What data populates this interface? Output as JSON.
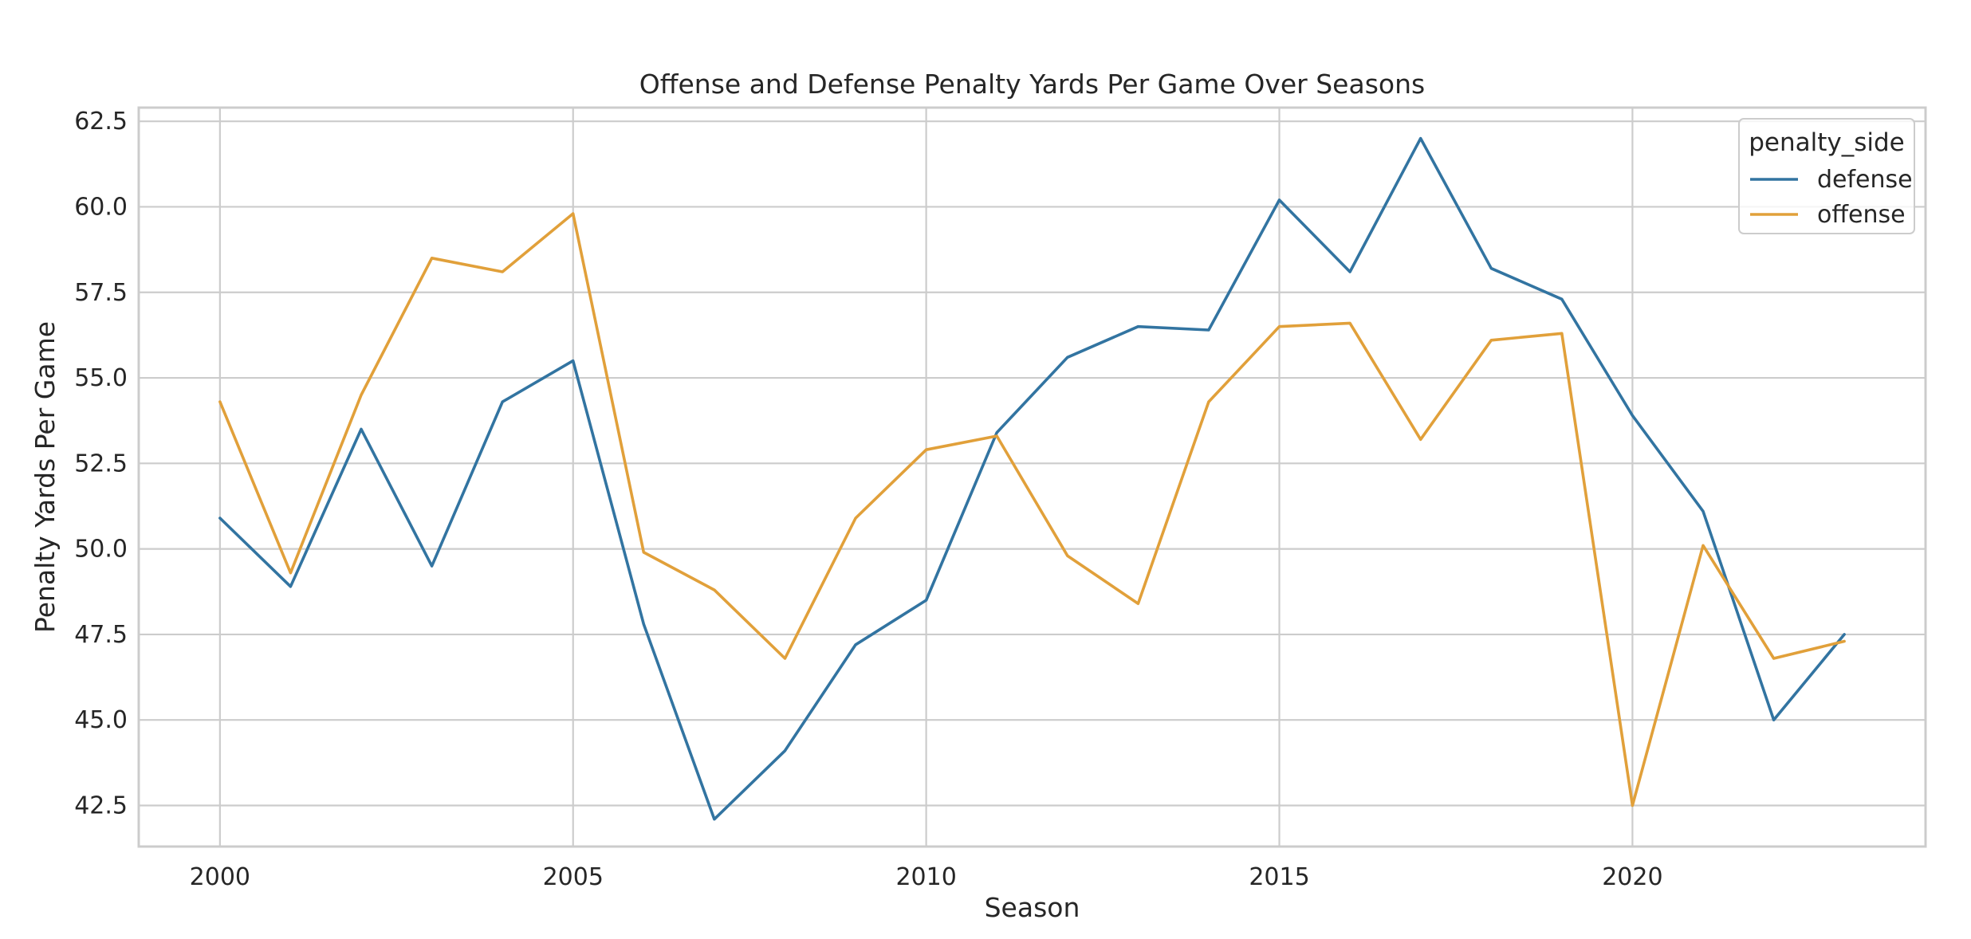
{
  "chart_data": {
    "type": "line",
    "title": "Offense and Defense Penalty Yards Per Game Over Seasons",
    "xlabel": "Season",
    "ylabel": "Penalty Yards Per Game",
    "x": [
      2000,
      2001,
      2002,
      2003,
      2004,
      2005,
      2006,
      2007,
      2008,
      2009,
      2010,
      2011,
      2012,
      2013,
      2014,
      2015,
      2016,
      2017,
      2018,
      2019,
      2020,
      2021,
      2022,
      2023
    ],
    "xlim": [
      1998.85,
      2024.15
    ],
    "ylim": [
      41.3,
      62.9
    ],
    "xticks": [
      2000,
      2005,
      2010,
      2015,
      2020
    ],
    "xtick_labels": [
      "2000",
      "2005",
      "2010",
      "2015",
      "2020"
    ],
    "yticks": [
      42.5,
      45.0,
      47.5,
      50.0,
      52.5,
      55.0,
      57.5,
      60.0,
      62.5
    ],
    "ytick_labels": [
      "42.5",
      "45.0",
      "47.5",
      "50.0",
      "52.5",
      "55.0",
      "57.5",
      "60.0",
      "62.5"
    ],
    "grid": true,
    "legend": {
      "title": "penalty_side",
      "position": "upper-right"
    },
    "series": [
      {
        "name": "defense",
        "color": "#3274a1",
        "values": [
          50.9,
          48.9,
          53.5,
          49.5,
          54.3,
          55.5,
          47.8,
          42.1,
          44.1,
          47.2,
          48.5,
          53.4,
          55.6,
          56.5,
          56.4,
          60.2,
          58.1,
          62.0,
          58.2,
          57.3,
          53.9,
          51.1,
          45.0,
          47.5
        ]
      },
      {
        "name": "offense",
        "color": "#e1a03a",
        "values": [
          54.3,
          49.3,
          54.5,
          58.5,
          58.1,
          59.8,
          49.9,
          48.8,
          46.8,
          50.9,
          52.9,
          53.3,
          49.8,
          48.4,
          54.3,
          56.5,
          56.6,
          53.2,
          56.1,
          56.3,
          42.5,
          50.1,
          46.8,
          47.3
        ]
      }
    ]
  }
}
